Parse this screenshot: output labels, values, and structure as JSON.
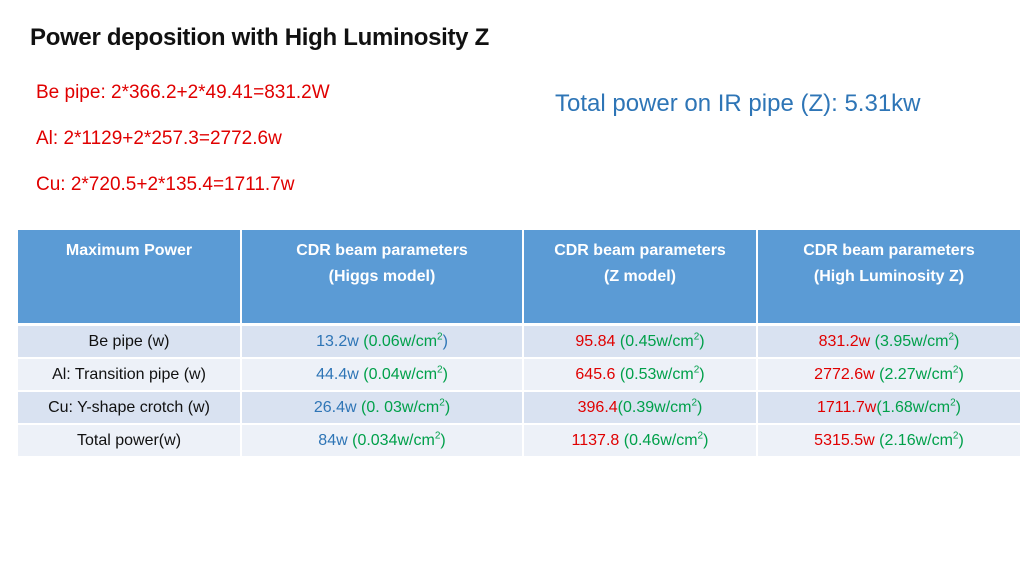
{
  "title": "Power deposition with High Luminosity Z",
  "calculations": [
    "Be pipe: 2*366.2+2*49.41=831.2W",
    "Al: 2*1129+2*257.3=2772.6w",
    "Cu: 2*720.5+2*135.4=1711.7w"
  ],
  "total_note": "Total power on IR pipe (Z): 5.31kw",
  "table": {
    "headers": [
      {
        "line1": "Maximum Power",
        "line2": ""
      },
      {
        "line1": "CDR  beam parameters",
        "line2": "(Higgs model)"
      },
      {
        "line1": "CDR  beam parameters",
        "line2": "(Z model)"
      },
      {
        "line1": "CDR  beam parameters",
        "line2": "(High Luminosity Z)"
      }
    ],
    "rows": [
      {
        "label": "Be pipe (w)",
        "higgs": {
          "power": "13.2w",
          "density": "0.06w/cm",
          "close": ")"
        },
        "z": {
          "power": "95.84",
          "density": "0.45w/cm",
          "close": ")"
        },
        "hlz": {
          "power": "831.2w",
          "density": "3.95w/cm",
          "close": ")"
        }
      },
      {
        "label": "Al: Transition pipe (w)",
        "higgs": {
          "power": "44.4w",
          "density": "0.04w/cm",
          "close": ")"
        },
        "z": {
          "power": "645.6",
          "density": "0.53w/cm",
          "close": ")"
        },
        "hlz": {
          "power": "2772.6w",
          "density": "2.27w/cm",
          "close": ")"
        }
      },
      {
        "label": "Cu: Y-shape crotch (w)",
        "higgs": {
          "power": "26.4w",
          "density": "0. 03w/cm",
          "close": ")"
        },
        "z": {
          "power": "396.4",
          "density": "0.39w/cm",
          "close": ")"
        },
        "hlz": {
          "power": "1711.7w",
          "density": "1.68w/cm",
          "close": ")"
        }
      },
      {
        "label": "Total power(w)",
        "higgs": {
          "power": "84w",
          "density": "0.034w/cm",
          "close": ")"
        },
        "z": {
          "power": "1137.8",
          "density": "0.46w/cm",
          "close": ")"
        },
        "hlz": {
          "power": "5315.5w",
          "density": "2.16w/cm",
          "close": ")"
        }
      }
    ],
    "unit_superscript": "2"
  },
  "colors": {
    "header_bg": "#5b9bd5",
    "row_dark": "#d9e2f1",
    "row_light": "#edf1f8",
    "red": "#e00000",
    "blue": "#2e75b6",
    "green": "#00a04a"
  }
}
